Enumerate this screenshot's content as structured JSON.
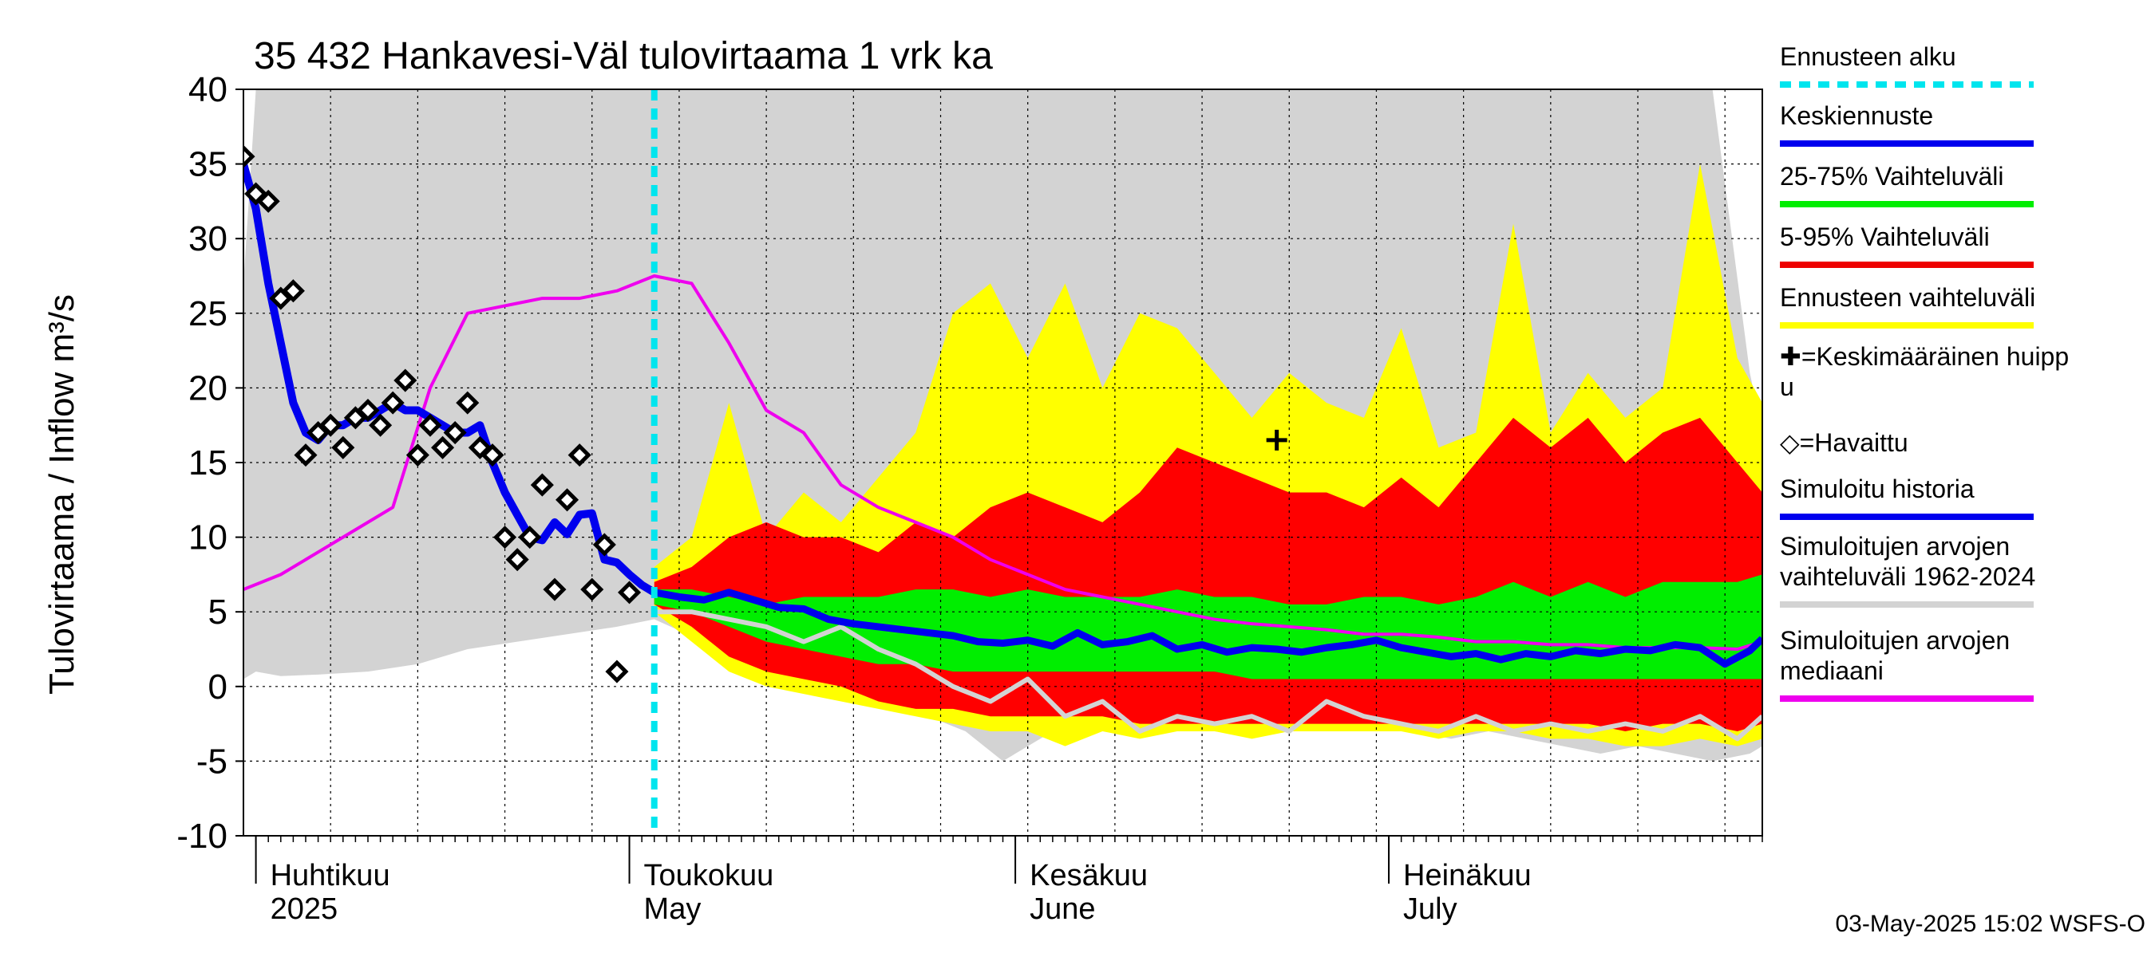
{
  "chart_data": {
    "type": "area",
    "title": "35 432 Hankavesi-Väl tulovirtaama 1 vrk ka",
    "ylabel": "Tulovirtaama / Inflow    m³/s",
    "ylim": [
      -10,
      40
    ],
    "yticks": [
      "40",
      "35",
      "30",
      "25",
      "20",
      "15",
      "10",
      "5",
      "0",
      "-5",
      "-10"
    ],
    "xlim": [
      "2025-03-31",
      "2025-07-31"
    ],
    "grid": true,
    "forecast_start": "2025-05-03",
    "months": [
      {
        "date": "2025-04-01",
        "fi": "Huhtikuu",
        "en": "2025"
      },
      {
        "date": "2025-05-01",
        "fi": "Toukokuu",
        "en": "May"
      },
      {
        "date": "2025-06-01",
        "fi": "Kesäkuu",
        "en": "June"
      },
      {
        "date": "2025-07-01",
        "fi": "Heinäkuu",
        "en": "July"
      }
    ],
    "legend": {
      "placement": "right",
      "items": [
        {
          "label": "Ennusteen alku",
          "color": "#00e5ee",
          "style": "dashed"
        },
        {
          "label": "Keskiennuste",
          "color": "#0000ee",
          "style": "line"
        },
        {
          "label": "25-75% Vaihteluväli",
          "color": "#00ee00",
          "style": "line"
        },
        {
          "label": "5-95% Vaihteluväli",
          "color": "#ee0000",
          "style": "line"
        },
        {
          "label": "Ennusteen vaihteluväli",
          "color": "#ffff00",
          "style": "line"
        },
        {
          "label": "✚=Keskimääräinen huipp\nu",
          "color": "#000000",
          "style": "text"
        },
        {
          "label": "◇=Havaittu",
          "color": "#000000",
          "style": "text"
        },
        {
          "label": "Simuloitu historia",
          "color": "#0000ee",
          "style": "line"
        },
        {
          "label": "Simuloitujen arvojen\nvaihteluväli 1962-2024",
          "color": "#d3d3d3",
          "style": "line"
        },
        {
          "label": "Simuloitujen arvojen\nmediaani",
          "color": "#ee00ee",
          "style": "line"
        }
      ]
    },
    "colors": {
      "history_range": "#d3d3d3",
      "forecast_range": "#ffff00",
      "p5_95": "#ff0000",
      "p25_75": "#00ee00",
      "median_forecast": "#0000ee",
      "sim_history": "#0000ee",
      "sim_median": "#ee00ee",
      "forecast_start": "#00e5ee",
      "light_line": "#d3d3d3"
    },
    "sim_range": {
      "x": [
        "2025-03-31",
        "2025-04-01",
        "2025-04-03",
        "2025-04-06",
        "2025-04-10",
        "2025-04-14",
        "2025-04-18",
        "2025-04-22",
        "2025-04-26",
        "2025-04-30",
        "2025-05-03",
        "2025-05-07",
        "2025-05-11",
        "2025-05-15",
        "2025-05-19",
        "2025-05-22",
        "2025-05-25",
        "2025-05-28",
        "2025-05-31",
        "2025-06-03",
        "2025-06-06",
        "2025-06-09",
        "2025-06-12",
        "2025-06-15",
        "2025-06-18",
        "2025-06-21",
        "2025-06-24",
        "2025-06-27",
        "2025-06-30",
        "2025-07-03",
        "2025-07-06",
        "2025-07-09",
        "2025-07-12",
        "2025-07-15",
        "2025-07-18",
        "2025-07-21",
        "2025-07-24",
        "2025-07-27",
        "2025-07-30",
        "2025-07-31"
      ],
      "upper": [
        27,
        40,
        40,
        40,
        40,
        40,
        40,
        40,
        40,
        40,
        40,
        40,
        40,
        40,
        40,
        40,
        40,
        40,
        40,
        40,
        40,
        40,
        40,
        40,
        40,
        40,
        40,
        40,
        40,
        40,
        40,
        40,
        40,
        40,
        40,
        40,
        40,
        40,
        21,
        17
      ],
      "lower": [
        0.5,
        1,
        0.7,
        0.8,
        1,
        1.5,
        2.5,
        3,
        3.5,
        4,
        4.5,
        3,
        2,
        1,
        0,
        -1,
        -2,
        -3,
        -5,
        -3.5,
        -2,
        -2.5,
        -3,
        -3,
        -2.5,
        -2,
        -2.5,
        -3,
        -3,
        -3,
        -3.5,
        -3,
        -3.5,
        -4,
        -4.5,
        -4,
        -4.5,
        -5,
        -4.5,
        -4
      ]
    },
    "forecast_range": {
      "x": [
        "2025-05-03",
        "2025-05-06",
        "2025-05-09",
        "2025-05-12",
        "2025-05-15",
        "2025-05-18",
        "2025-05-21",
        "2025-05-24",
        "2025-05-27",
        "2025-05-30",
        "2025-06-02",
        "2025-06-05",
        "2025-06-08",
        "2025-06-11",
        "2025-06-14",
        "2025-06-17",
        "2025-06-20",
        "2025-06-23",
        "2025-06-26",
        "2025-06-29",
        "2025-07-02",
        "2025-07-05",
        "2025-07-08",
        "2025-07-11",
        "2025-07-14",
        "2025-07-17",
        "2025-07-20",
        "2025-07-23",
        "2025-07-26",
        "2025-07-29",
        "2025-07-31"
      ],
      "upper": [
        8,
        10,
        19,
        10,
        13,
        11,
        14,
        17,
        25,
        27,
        22,
        27,
        20,
        25,
        24,
        21,
        18,
        21,
        19,
        18,
        24,
        16,
        17,
        31,
        17,
        21,
        18,
        20,
        35,
        22,
        19
      ],
      "lower": [
        5,
        3,
        1,
        0,
        -0.5,
        -1,
        -1.5,
        -2,
        -2.5,
        -3,
        -3,
        -4,
        -3,
        -3.5,
        -3,
        -3,
        -3.5,
        -3,
        -3,
        -3,
        -3,
        -3.5,
        -3,
        -3,
        -3.5,
        -3.5,
        -4,
        -4,
        -3.5,
        -4,
        -3.5
      ]
    },
    "p5_95": {
      "x": [
        "2025-05-03",
        "2025-05-06",
        "2025-05-09",
        "2025-05-12",
        "2025-05-15",
        "2025-05-18",
        "2025-05-21",
        "2025-05-24",
        "2025-05-27",
        "2025-05-30",
        "2025-06-02",
        "2025-06-05",
        "2025-06-08",
        "2025-06-11",
        "2025-06-14",
        "2025-06-17",
        "2025-06-20",
        "2025-06-23",
        "2025-06-26",
        "2025-06-29",
        "2025-07-02",
        "2025-07-05",
        "2025-07-08",
        "2025-07-11",
        "2025-07-14",
        "2025-07-17",
        "2025-07-20",
        "2025-07-23",
        "2025-07-26",
        "2025-07-29",
        "2025-07-31"
      ],
      "upper": [
        7,
        8,
        10,
        11,
        10,
        10,
        9,
        11,
        10,
        12,
        13,
        12,
        11,
        13,
        16,
        15,
        14,
        13,
        13,
        12,
        14,
        12,
        15,
        18,
        16,
        18,
        15,
        17,
        18,
        15,
        13
      ],
      "lower": [
        5.5,
        4,
        2,
        1,
        0.5,
        0,
        -1,
        -1.5,
        -1.5,
        -2,
        -2,
        -2,
        -2,
        -2.5,
        -2.5,
        -2.5,
        -2.5,
        -2.5,
        -2.5,
        -2.5,
        -2.5,
        -2.5,
        -2.5,
        -2.5,
        -2.5,
        -2.5,
        -3,
        -2.5,
        -2.5,
        -3,
        -2.5
      ]
    },
    "p25_75": {
      "x": [
        "2025-05-03",
        "2025-05-06",
        "2025-05-09",
        "2025-05-12",
        "2025-05-15",
        "2025-05-18",
        "2025-05-21",
        "2025-05-24",
        "2025-05-27",
        "2025-05-30",
        "2025-06-02",
        "2025-06-05",
        "2025-06-08",
        "2025-06-11",
        "2025-06-14",
        "2025-06-17",
        "2025-06-20",
        "2025-06-23",
        "2025-06-26",
        "2025-06-29",
        "2025-07-02",
        "2025-07-05",
        "2025-07-08",
        "2025-07-11",
        "2025-07-14",
        "2025-07-17",
        "2025-07-20",
        "2025-07-23",
        "2025-07-26",
        "2025-07-29",
        "2025-07-31"
      ],
      "upper": [
        6.5,
        6.5,
        6,
        5.5,
        6,
        6,
        6,
        6.5,
        6.5,
        6,
        6.5,
        6,
        6,
        6,
        6.5,
        6,
        6,
        5.5,
        5.5,
        6,
        6,
        5.5,
        6,
        7,
        6,
        7,
        6,
        7,
        7,
        7,
        7.5
      ],
      "lower": [
        5.5,
        5,
        4,
        3,
        2.5,
        2,
        1.5,
        1.5,
        1,
        1,
        1,
        1,
        1,
        1,
        1,
        1,
        0.5,
        0.5,
        0.5,
        0.5,
        0.5,
        0.5,
        0.5,
        0.5,
        0.5,
        0.5,
        0.5,
        0.5,
        0.5,
        0.5,
        0.5
      ]
    },
    "median_forecast": {
      "x": [
        "2025-05-03",
        "2025-05-05",
        "2025-05-07",
        "2025-05-09",
        "2025-05-11",
        "2025-05-13",
        "2025-05-15",
        "2025-05-17",
        "2025-05-19",
        "2025-05-21",
        "2025-05-23",
        "2025-05-25",
        "2025-05-27",
        "2025-05-29",
        "2025-05-31",
        "2025-06-02",
        "2025-06-04",
        "2025-06-06",
        "2025-06-08",
        "2025-06-10",
        "2025-06-12",
        "2025-06-14",
        "2025-06-16",
        "2025-06-18",
        "2025-06-20",
        "2025-06-22",
        "2025-06-24",
        "2025-06-26",
        "2025-06-28",
        "2025-06-30",
        "2025-07-02",
        "2025-07-04",
        "2025-07-06",
        "2025-07-08",
        "2025-07-10",
        "2025-07-12",
        "2025-07-14",
        "2025-07-16",
        "2025-07-18",
        "2025-07-20",
        "2025-07-22",
        "2025-07-24",
        "2025-07-26",
        "2025-07-28",
        "2025-07-30",
        "2025-07-31"
      ],
      "values": [
        6.3,
        6,
        5.8,
        6.3,
        5.8,
        5.3,
        5.2,
        4.5,
        4.2,
        4.0,
        3.8,
        3.6,
        3.4,
        3.0,
        2.9,
        3.1,
        2.7,
        3.6,
        2.8,
        3.0,
        3.4,
        2.5,
        2.8,
        2.3,
        2.6,
        2.5,
        2.3,
        2.6,
        2.8,
        3.1,
        2.6,
        2.3,
        2.0,
        2.2,
        1.8,
        2.2,
        2.0,
        2.4,
        2.2,
        2.5,
        2.4,
        2.8,
        2.6,
        1.5,
        2.4,
        3.2
      ]
    },
    "light_line": {
      "x": [
        "2025-05-03",
        "2025-05-06",
        "2025-05-09",
        "2025-05-12",
        "2025-05-15",
        "2025-05-18",
        "2025-05-21",
        "2025-05-24",
        "2025-05-27",
        "2025-05-30",
        "2025-06-02",
        "2025-06-05",
        "2025-06-08",
        "2025-06-11",
        "2025-06-14",
        "2025-06-17",
        "2025-06-20",
        "2025-06-23",
        "2025-06-26",
        "2025-06-29",
        "2025-07-02",
        "2025-07-05",
        "2025-07-08",
        "2025-07-11",
        "2025-07-14",
        "2025-07-17",
        "2025-07-20",
        "2025-07-23",
        "2025-07-26",
        "2025-07-29",
        "2025-07-31"
      ],
      "values": [
        5,
        5,
        4.5,
        4,
        3,
        4,
        2.5,
        1.5,
        0,
        -1,
        0.5,
        -2,
        -1,
        -3,
        -2,
        -2.5,
        -2,
        -3,
        -1,
        -2,
        -2.5,
        -3,
        -2,
        -3,
        -2.5,
        -3,
        -2.5,
        -3,
        -2,
        -3.5,
        -2
      ]
    },
    "sim_history": {
      "x": [
        "2025-03-31",
        "2025-04-01",
        "2025-04-02",
        "2025-04-03",
        "2025-04-04",
        "2025-04-05",
        "2025-04-06",
        "2025-04-07",
        "2025-04-08",
        "2025-04-09",
        "2025-04-10",
        "2025-04-11",
        "2025-04-12",
        "2025-04-13",
        "2025-04-14",
        "2025-04-15",
        "2025-04-16",
        "2025-04-17",
        "2025-04-18",
        "2025-04-19",
        "2025-04-20",
        "2025-04-21",
        "2025-04-22",
        "2025-04-23",
        "2025-04-24",
        "2025-04-25",
        "2025-04-26",
        "2025-04-27",
        "2025-04-28",
        "2025-04-29",
        "2025-04-30",
        "2025-05-01",
        "2025-05-02",
        "2025-05-03"
      ],
      "values": [
        35,
        32,
        27,
        23,
        19,
        17,
        16.5,
        17.5,
        17.5,
        18,
        18,
        18.5,
        19,
        18.5,
        18.5,
        18,
        17.5,
        17,
        17,
        17.5,
        15,
        13,
        11.5,
        10,
        9.8,
        11,
        10.2,
        11.5,
        11.6,
        8.5,
        8.3,
        7.5,
        6.8,
        6.3
      ]
    },
    "sim_median": {
      "x": [
        "2025-03-31",
        "2025-04-03",
        "2025-04-06",
        "2025-04-09",
        "2025-04-12",
        "2025-04-15",
        "2025-04-18",
        "2025-04-21",
        "2025-04-24",
        "2025-04-27",
        "2025-04-30",
        "2025-05-03",
        "2025-05-06",
        "2025-05-09",
        "2025-05-12",
        "2025-05-15",
        "2025-05-18",
        "2025-05-21",
        "2025-05-24",
        "2025-05-27",
        "2025-05-30",
        "2025-06-02",
        "2025-06-05",
        "2025-06-08",
        "2025-06-11",
        "2025-06-14",
        "2025-06-17",
        "2025-06-20",
        "2025-06-23",
        "2025-06-26",
        "2025-06-29",
        "2025-07-02",
        "2025-07-05",
        "2025-07-08",
        "2025-07-11",
        "2025-07-14",
        "2025-07-17",
        "2025-07-20",
        "2025-07-23",
        "2025-07-26",
        "2025-07-29",
        "2025-07-31"
      ],
      "values": [
        6.5,
        7.5,
        9,
        10.5,
        12,
        20,
        25,
        25.5,
        26,
        26,
        26.5,
        27.5,
        27,
        23,
        18.5,
        17,
        13.5,
        12,
        11,
        10,
        8.5,
        7.5,
        6.5,
        6,
        5.5,
        5,
        4.5,
        4.2,
        4,
        3.8,
        3.5,
        3.5,
        3.3,
        3,
        3,
        2.8,
        2.8,
        2.6,
        2.6,
        2.6,
        2.5,
        3
      ]
    },
    "observed": {
      "x": [
        "2025-03-31",
        "2025-04-01",
        "2025-04-02",
        "2025-04-03",
        "2025-04-04",
        "2025-04-05",
        "2025-04-06",
        "2025-04-07",
        "2025-04-08",
        "2025-04-09",
        "2025-04-10",
        "2025-04-11",
        "2025-04-12",
        "2025-04-13",
        "2025-04-14",
        "2025-04-15",
        "2025-04-16",
        "2025-04-17",
        "2025-04-18",
        "2025-04-19",
        "2025-04-20",
        "2025-04-21",
        "2025-04-22",
        "2025-04-23",
        "2025-04-24",
        "2025-04-25",
        "2025-04-26",
        "2025-04-27",
        "2025-04-28",
        "2025-04-29",
        "2025-04-30",
        "2025-05-01"
      ],
      "values": [
        35.5,
        33,
        32.5,
        26,
        26.5,
        15.5,
        17,
        17.5,
        16,
        18,
        18.5,
        17.5,
        19,
        20.5,
        15.5,
        17.5,
        16,
        17,
        19,
        16,
        15.5,
        10,
        8.5,
        10,
        13.5,
        6.5,
        12.5,
        15.5,
        6.5,
        9.5,
        1,
        6.3
      ]
    },
    "average_peak": {
      "x": "2025-06-22",
      "y": 16.5
    }
  },
  "footer": "03-May-2025 15:02 WSFS-O"
}
